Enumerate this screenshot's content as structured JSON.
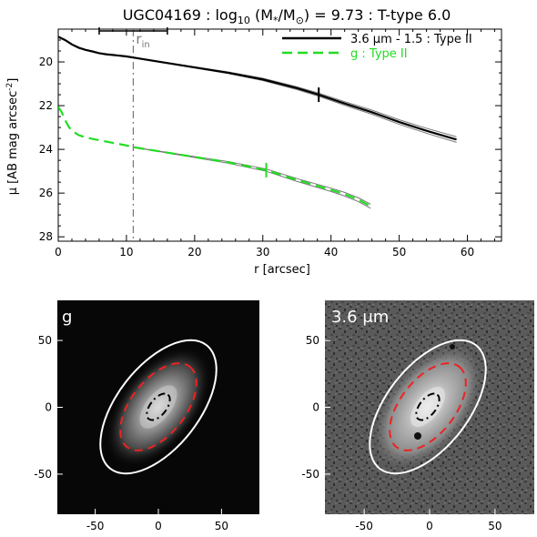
{
  "title": {
    "galaxy": "UGC04169 : log",
    "sub": "10",
    "mass": " (M",
    "star": "*",
    "slash": "/M",
    "sun": "⊙",
    "rest": ") = 9.73 : T-type 6.0"
  },
  "chart_data": [
    {
      "type": "line",
      "title": "UGC04169 : log10 (M*/M⊙) = 9.73 : T-type 6.0",
      "xlabel": "r [arcsec]",
      "ylabel": "μ [AB mag arcsec^-2]",
      "xlim": [
        0,
        65
      ],
      "ylim": [
        28.2,
        18.5
      ],
      "y_inverted": true,
      "xticks": [
        "0",
        "10",
        "20",
        "30",
        "40",
        "50",
        "60"
      ],
      "yticks": [
        "20",
        "22",
        "24",
        "26",
        "28"
      ],
      "legend_position": "top-right",
      "series": [
        {
          "name": "3.6 μm - 1.5 : Type II",
          "color": "#000000",
          "style": "solid",
          "x": [
            0,
            1,
            2,
            3,
            4,
            5,
            6,
            7,
            8,
            10,
            12,
            15,
            20,
            25,
            30,
            35,
            38.2,
            42,
            46,
            50,
            54,
            58.4
          ],
          "y": [
            18.85,
            19.0,
            19.2,
            19.35,
            19.45,
            19.52,
            19.6,
            19.65,
            19.68,
            19.75,
            19.85,
            20.0,
            20.25,
            20.5,
            20.8,
            21.2,
            21.5,
            21.9,
            22.3,
            22.75,
            23.15,
            23.55
          ],
          "break_radius": 38.2
        },
        {
          "name": "g : Type II",
          "color": "#22dd22",
          "style": "dashed",
          "x": [
            0,
            0.5,
            1,
            1.5,
            2,
            3,
            4,
            5,
            6,
            8,
            10,
            11,
            15,
            20,
            25,
            30.5,
            35,
            40,
            42,
            44,
            45.8
          ],
          "y": [
            22.05,
            22.3,
            22.65,
            22.95,
            23.15,
            23.35,
            23.45,
            23.52,
            23.58,
            23.7,
            23.82,
            23.9,
            24.1,
            24.35,
            24.6,
            24.95,
            25.4,
            25.85,
            26.05,
            26.3,
            26.6
          ],
          "break_radius": 30.5
        }
      ],
      "annotations": [
        {
          "text": "r",
          "sub": "in",
          "x": 11
        }
      ],
      "r_in": 11,
      "r_in_errorbar": [
        6,
        16
      ]
    },
    {
      "type": "image",
      "label": "g",
      "xlim": [
        -80,
        80
      ],
      "ylim": [
        -80,
        80
      ],
      "xticks": [
        "-50",
        "0",
        "50"
      ],
      "yticks": [
        "50",
        "0",
        "-50"
      ]
    },
    {
      "type": "image",
      "label": "3.6 μm",
      "xlim": [
        -80,
        80
      ],
      "ylim": [
        -80,
        80
      ],
      "xticks": [
        "-50",
        "0",
        "50"
      ],
      "yticks": [
        "50",
        "0",
        "-50"
      ]
    }
  ],
  "colors": {
    "irac": "#000000",
    "g_band": "#22dd22",
    "grey_fit": "#777777",
    "rin_line": "#777777",
    "outer_ellipse": "#ffffff",
    "mid_ellipse": "#ee2222",
    "inner_ellipse": "#000000"
  }
}
